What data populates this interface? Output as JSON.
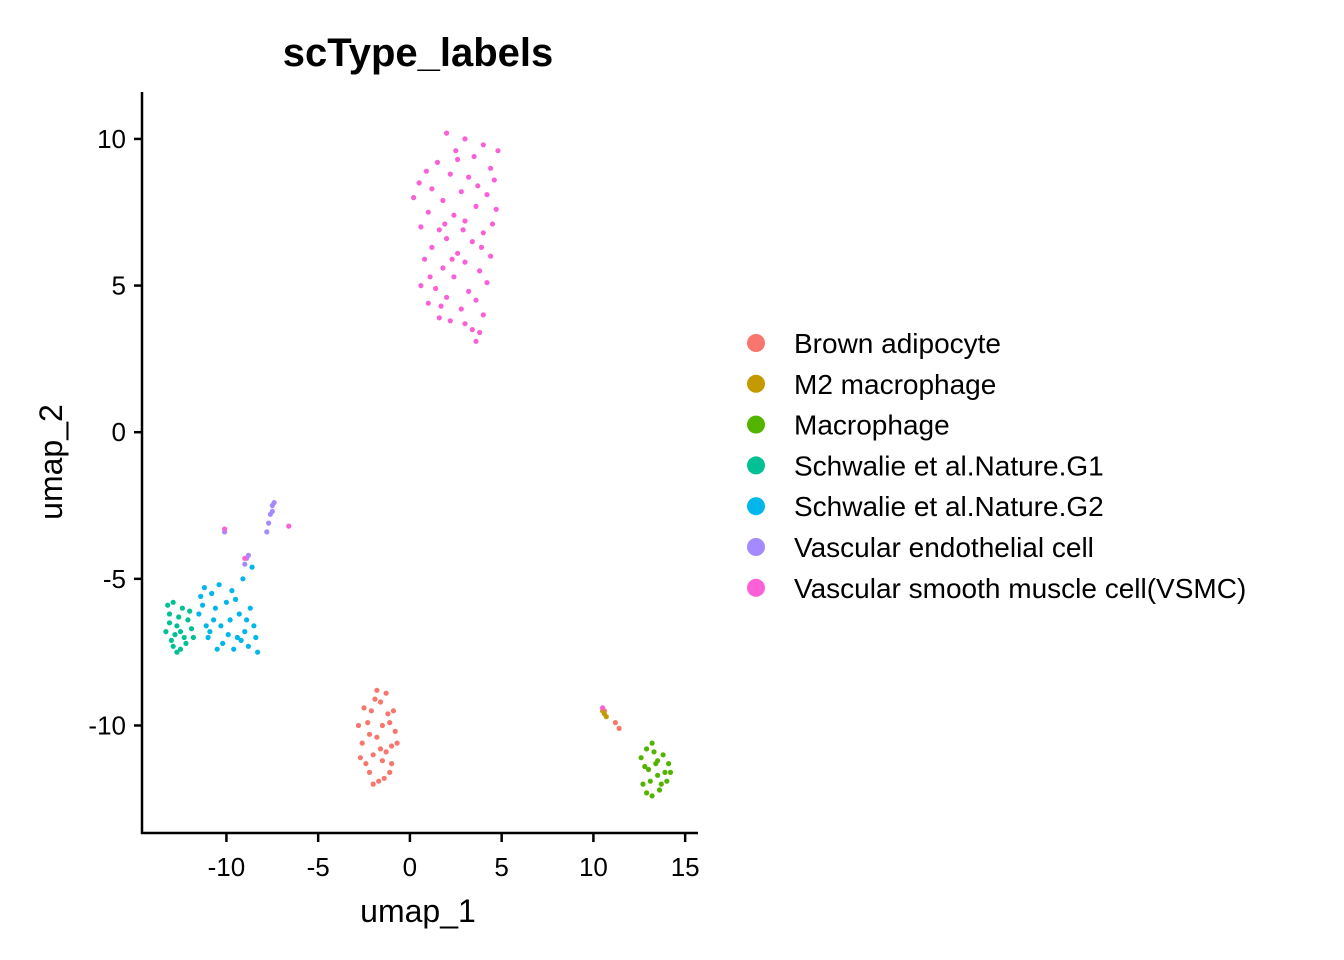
{
  "chart_data": {
    "type": "scatter",
    "title": "scType_labels",
    "xlabel": "umap_1",
    "ylabel": "umap_2",
    "xlim": [
      -14.6,
      15.7
    ],
    "ylim": [
      -13.7,
      11.6
    ],
    "xticks": [
      -10,
      -5,
      0,
      5,
      10,
      15
    ],
    "yticks": [
      -10,
      -5,
      0,
      5,
      10
    ],
    "grid": false,
    "legend_position": "right",
    "series": [
      {
        "name": "Brown adipocyte",
        "color": "#F8766D",
        "points": [
          [
            -1.8,
            -10.4
          ],
          [
            -1.2,
            -9.6
          ],
          [
            -2.3,
            -9.9
          ],
          [
            -1.5,
            -11.2
          ],
          [
            -2.0,
            -11.0
          ],
          [
            -1.0,
            -10.7
          ],
          [
            -2.6,
            -10.6
          ],
          [
            -1.6,
            -9.2
          ],
          [
            -1.1,
            -9.9
          ],
          [
            -2.2,
            -11.6
          ],
          [
            -1.4,
            -11.8
          ],
          [
            -0.8,
            -10.2
          ],
          [
            -2.8,
            -10.0
          ],
          [
            -1.9,
            -9.1
          ],
          [
            -1.3,
            -10.9
          ],
          [
            -2.4,
            -11.3
          ],
          [
            -0.9,
            -9.5
          ],
          [
            -1.7,
            -11.9
          ],
          [
            -2.1,
            -9.5
          ],
          [
            -1.5,
            -10.0
          ],
          [
            -2.7,
            -11.1
          ],
          [
            -1.0,
            -11.3
          ],
          [
            -1.8,
            -8.8
          ],
          [
            -2.5,
            -9.4
          ],
          [
            -0.7,
            -10.6
          ],
          [
            -1.3,
            -8.9
          ],
          [
            -2.2,
            -10.3
          ],
          [
            -1.6,
            -10.8
          ],
          [
            -2.0,
            -12.0
          ],
          [
            -1.1,
            -11.6
          ],
          [
            10.6,
            -9.5
          ],
          [
            11.2,
            -9.9
          ],
          [
            11.4,
            -10.1
          ]
        ]
      },
      {
        "name": "M2 macrophage",
        "color": "#C49A00",
        "points": [
          [
            10.6,
            -9.6
          ],
          [
            10.7,
            -9.7
          ],
          [
            10.5,
            -9.5
          ]
        ]
      },
      {
        "name": "Macrophage",
        "color": "#53B400",
        "points": [
          [
            12.9,
            -10.8
          ],
          [
            13.4,
            -11.3
          ],
          [
            13.9,
            -11.6
          ],
          [
            13.1,
            -11.9
          ],
          [
            12.8,
            -11.4
          ],
          [
            13.6,
            -12.2
          ],
          [
            14.1,
            -11.3
          ],
          [
            13.3,
            -10.9
          ],
          [
            12.7,
            -12.0
          ],
          [
            13.8,
            -11.0
          ],
          [
            13.2,
            -12.4
          ],
          [
            14.0,
            -11.9
          ],
          [
            12.6,
            -11.1
          ],
          [
            13.5,
            -11.7
          ],
          [
            13.0,
            -11.5
          ],
          [
            13.7,
            -12.0
          ],
          [
            13.2,
            -10.6
          ],
          [
            14.2,
            -11.6
          ],
          [
            12.9,
            -12.3
          ],
          [
            13.5,
            -11.2
          ]
        ]
      },
      {
        "name": "Schwalie et al.Nature.G1",
        "color": "#00C094",
        "points": [
          [
            -13.1,
            -6.2
          ],
          [
            -12.7,
            -6.6
          ],
          [
            -12.3,
            -7.0
          ],
          [
            -12.9,
            -5.8
          ],
          [
            -12.5,
            -7.4
          ],
          [
            -13.3,
            -6.8
          ],
          [
            -12.1,
            -6.4
          ],
          [
            -12.8,
            -6.9
          ],
          [
            -12.4,
            -6.0
          ],
          [
            -13.0,
            -7.1
          ],
          [
            -12.2,
            -7.2
          ],
          [
            -12.6,
            -6.3
          ],
          [
            -13.2,
            -5.9
          ],
          [
            -11.9,
            -6.7
          ],
          [
            -12.7,
            -7.5
          ],
          [
            -12.0,
            -6.1
          ],
          [
            -13.1,
            -6.5
          ],
          [
            -12.5,
            -6.8
          ],
          [
            -11.8,
            -7.0
          ],
          [
            -12.9,
            -7.3
          ]
        ]
      },
      {
        "name": "Schwalie et al.Nature.G2",
        "color": "#00B6EB",
        "points": [
          [
            -11.2,
            -5.3
          ],
          [
            -10.6,
            -6.0
          ],
          [
            -9.8,
            -6.4
          ],
          [
            -9.2,
            -7.1
          ],
          [
            -8.5,
            -6.6
          ],
          [
            -10.9,
            -6.8
          ],
          [
            -11.5,
            -6.2
          ],
          [
            -10.2,
            -7.2
          ],
          [
            -9.5,
            -5.7
          ],
          [
            -8.8,
            -7.3
          ],
          [
            -10.4,
            -5.2
          ],
          [
            -11.0,
            -7.0
          ],
          [
            -9.9,
            -6.9
          ],
          [
            -8.3,
            -7.5
          ],
          [
            -10.7,
            -6.4
          ],
          [
            -9.3,
            -6.2
          ],
          [
            -11.4,
            -5.6
          ],
          [
            -10.0,
            -5.8
          ],
          [
            -8.7,
            -6.0
          ],
          [
            -9.6,
            -7.4
          ],
          [
            -10.8,
            -5.5
          ],
          [
            -11.1,
            -6.6
          ],
          [
            -9.0,
            -6.8
          ],
          [
            -8.4,
            -7.0
          ],
          [
            -10.3,
            -6.6
          ],
          [
            -9.7,
            -5.4
          ],
          [
            -8.9,
            -6.4
          ],
          [
            -10.5,
            -7.4
          ],
          [
            -11.3,
            -5.9
          ],
          [
            -9.4,
            -7.0
          ],
          [
            -9.1,
            -5.0
          ],
          [
            -8.6,
            -4.6
          ]
        ]
      },
      {
        "name": "Vascular endothelial cell",
        "color": "#A58AFF",
        "points": [
          [
            -7.5,
            -2.5
          ],
          [
            -7.6,
            -2.8
          ],
          [
            -7.7,
            -3.1
          ],
          [
            -7.8,
            -3.4
          ],
          [
            -7.5,
            -2.7
          ],
          [
            -7.4,
            -2.4
          ],
          [
            -10.1,
            -3.4
          ],
          [
            -8.9,
            -4.3
          ],
          [
            -9.0,
            -4.5
          ],
          [
            -8.8,
            -4.2
          ]
        ]
      },
      {
        "name": "Vascular smooth muscle cell(VSMC)",
        "color": "#FB61D7",
        "points": [
          [
            2.0,
            10.2
          ],
          [
            3.0,
            10.0
          ],
          [
            4.0,
            9.8
          ],
          [
            4.8,
            9.6
          ],
          [
            2.5,
            9.6
          ],
          [
            3.5,
            9.4
          ],
          [
            1.5,
            9.2
          ],
          [
            4.4,
            9.0
          ],
          [
            2.2,
            8.8
          ],
          [
            3.2,
            8.7
          ],
          [
            0.5,
            8.5
          ],
          [
            1.2,
            8.3
          ],
          [
            2.8,
            8.2
          ],
          [
            4.2,
            8.1
          ],
          [
            0.2,
            8.0
          ],
          [
            1.8,
            7.9
          ],
          [
            3.6,
            7.7
          ],
          [
            4.7,
            7.6
          ],
          [
            1.0,
            7.5
          ],
          [
            2.4,
            7.4
          ],
          [
            3.0,
            7.2
          ],
          [
            0.6,
            7.0
          ],
          [
            1.6,
            6.9
          ],
          [
            4.0,
            6.8
          ],
          [
            2.0,
            6.6
          ],
          [
            3.4,
            6.5
          ],
          [
            1.2,
            6.3
          ],
          [
            2.6,
            6.1
          ],
          [
            4.4,
            6.0
          ],
          [
            0.8,
            5.9
          ],
          [
            3.0,
            5.8
          ],
          [
            1.8,
            5.6
          ],
          [
            3.8,
            5.5
          ],
          [
            2.4,
            5.3
          ],
          [
            4.2,
            5.1
          ],
          [
            0.6,
            5.0
          ],
          [
            1.4,
            4.9
          ],
          [
            3.2,
            4.8
          ],
          [
            2.0,
            4.6
          ],
          [
            3.6,
            4.5
          ],
          [
            1.0,
            4.4
          ],
          [
            2.8,
            4.2
          ],
          [
            4.0,
            4.0
          ],
          [
            1.6,
            3.9
          ],
          [
            3.0,
            3.7
          ],
          [
            3.4,
            3.5
          ],
          [
            2.2,
            3.8
          ],
          [
            3.8,
            3.4
          ],
          [
            3.6,
            3.1
          ],
          [
            2.6,
            9.3
          ],
          [
            1.9,
            7.1
          ],
          [
            3.7,
            8.4
          ],
          [
            0.9,
            8.9
          ],
          [
            4.6,
            8.6
          ],
          [
            2.3,
            5.9
          ],
          [
            3.9,
            6.3
          ],
          [
            1.1,
            5.3
          ],
          [
            2.9,
            6.9
          ],
          [
            4.5,
            7.1
          ],
          [
            1.7,
            4.3
          ],
          [
            -10.1,
            -3.3
          ],
          [
            -6.6,
            -3.2
          ],
          [
            -9.0,
            -4.3
          ],
          [
            10.5,
            -9.4
          ]
        ]
      }
    ]
  }
}
